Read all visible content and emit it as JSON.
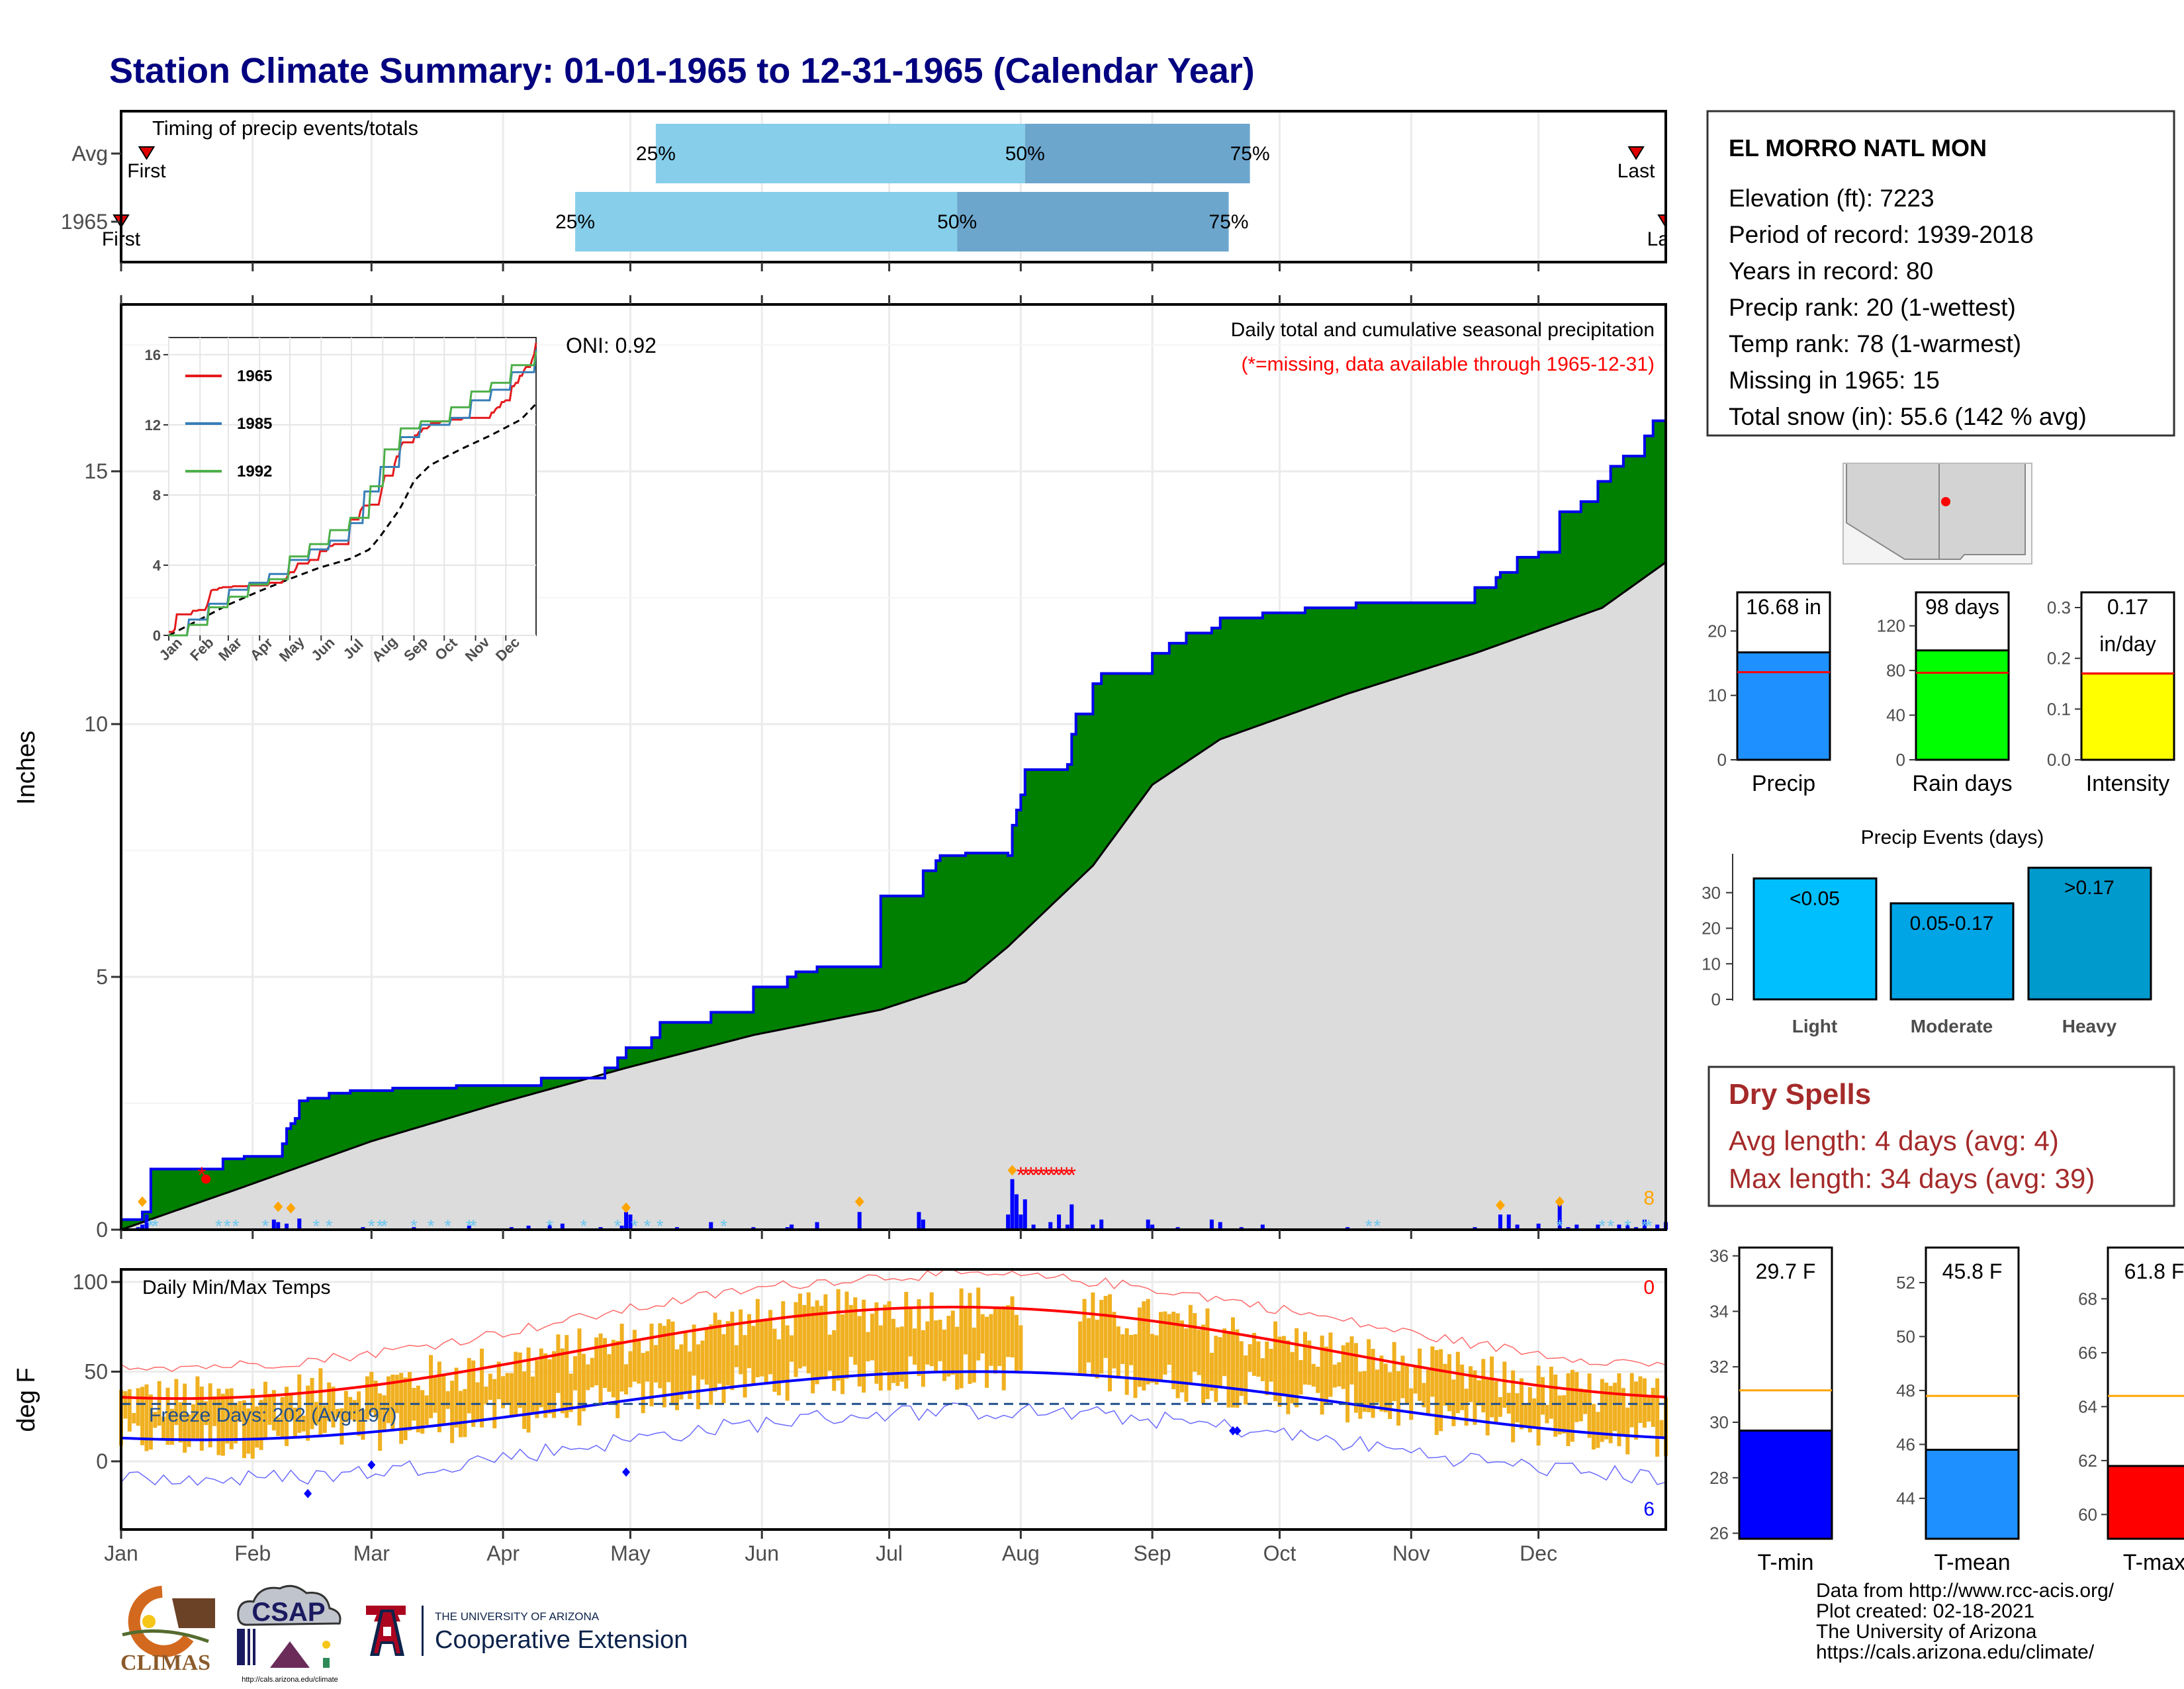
{
  "title": "Station Climate Summary: 01-01-1965 to 12-31-1965 (Calendar Year)",
  "colors": {
    "title": "#000080",
    "green_fill": "#008000",
    "blue_line": "#0000ee",
    "avg_gray": "#dcdcdc",
    "light_blue": "#87ceeb",
    "mid_blue": "#6ca6cd",
    "temp_orange": "#f0b020",
    "tmin_blue": "#0000ff",
    "tmean_blue": "#1e90ff",
    "tmax_red": "#ff0000",
    "dry_red": "#a52a2a",
    "orange_line": "#ffa500",
    "precip_bar": "#1e90ff",
    "rain_bar": "#00ff00",
    "intensity_bar": "#ffff00",
    "light_bar": "#00bfff",
    "moderate_bar": "#00a5e6",
    "heavy_bar": "#009acd"
  },
  "timing": {
    "label": "Timing of precip events/totals",
    "rows": [
      {
        "name": "Avg",
        "first_day": 7,
        "p25_day": 127,
        "p50_day": 214,
        "p75_day": 267,
        "last_day": 358,
        "first_label": "First",
        "last_label": "Last"
      },
      {
        "name": "1965",
        "first_day": 1,
        "p25_day": 108,
        "p50_day": 198,
        "p75_day": 262,
        "last_day": 365,
        "first_label": "First",
        "last_label": "Last"
      }
    ],
    "pct_labels": [
      "25%",
      "50%",
      "75%"
    ]
  },
  "main": {
    "ylabel": "Inches",
    "oni": "ONI: 0.92",
    "subtitle": "Daily total and cumulative seasonal precipitation",
    "missing_note": "(*=missing, data available through 1965-12-31)",
    "snow_count": "8",
    "yticks": [
      "0",
      "5",
      "10",
      "15"
    ],
    "months": [
      "Jan",
      "Feb",
      "Mar",
      "Apr",
      "May",
      "Jun",
      "Jul",
      "Aug",
      "Sep",
      "Oct",
      "Nov",
      "Dec"
    ]
  },
  "inset": {
    "legend": [
      "1965",
      "1985",
      "1992"
    ],
    "yticks": [
      "0",
      "4",
      "8",
      "12",
      "16"
    ],
    "months": [
      "Jan",
      "Feb",
      "Mar",
      "Apr",
      "May",
      "Jun",
      "Jul",
      "Aug",
      "Sep",
      "Oct",
      "Nov",
      "Dec"
    ]
  },
  "temps": {
    "ylabel": "deg F",
    "label": "Daily Min/Max Temps",
    "freeze": "Freeze Days: 202 (Avg:197)",
    "yticks": [
      "0",
      "50",
      "100"
    ],
    "count_red": "0",
    "count_blue": "6"
  },
  "station": {
    "name": "EL MORRO NATL MON",
    "lines": [
      "Elevation (ft): 7223",
      "Period of record: 1939-2018",
      "Years in record: 80",
      "Precip rank: 20 (1-wettest)",
      "Temp rank: 78 (1-warmest)",
      "Missing in 1965: 15",
      "Total snow (in): 55.6 (142 % avg)"
    ]
  },
  "summary_bars": [
    {
      "label": "Precip",
      "value": 16.68,
      "avg": 13.6,
      "text": [
        "16.68 in"
      ],
      "yticks": [
        "0",
        "10",
        "20"
      ],
      "ymax": 26,
      "tickvals": [
        0,
        10,
        20
      ]
    },
    {
      "label": "Rain days",
      "value": 98,
      "avg": 78,
      "text": [
        "98 days"
      ],
      "yticks": [
        "0",
        "40",
        "80",
        "120"
      ],
      "ymax": 150,
      "tickvals": [
        0,
        40,
        80,
        120
      ]
    },
    {
      "label": "Intensity",
      "value": 0.17,
      "avg": 0.17,
      "text": [
        "0.17",
        "in/day"
      ],
      "yticks": [
        "0.0",
        "0.1",
        "0.2",
        "0.3"
      ],
      "ymax": 0.33,
      "tickvals": [
        0,
        0.1,
        0.2,
        0.3
      ]
    }
  ],
  "events": {
    "title": "Precip Events (days)",
    "categories": [
      "Light",
      "Moderate",
      "Heavy"
    ],
    "labels": [
      "<0.05",
      "0.05-0.17",
      ">0.17"
    ],
    "values": [
      34,
      27,
      37
    ],
    "yticks": [
      "0",
      "10",
      "20",
      "30"
    ]
  },
  "dry_spells": {
    "title": "Dry Spells",
    "avg": "Avg length: 4 days (avg: 4)",
    "max": "Max length: 34 days (avg: 39)"
  },
  "temp_bars": [
    {
      "label": "T-min",
      "value": 29.7,
      "avg": 31.15,
      "text": "29.7 F",
      "ymin": 25.8,
      "ymax": 36.3,
      "yticks": [
        "26",
        "28",
        "30",
        "32",
        "34",
        "36"
      ]
    },
    {
      "label": "T-mean",
      "value": 45.8,
      "avg": 47.8,
      "text": "45.8 F",
      "ymin": 42.5,
      "ymax": 53.3,
      "yticks": [
        "44",
        "46",
        "48",
        "50",
        "52"
      ]
    },
    {
      "label": "T-max",
      "value": 61.8,
      "avg": 64.4,
      "text": "61.8 F",
      "ymin": 59.1,
      "ymax": 69.9,
      "yticks": [
        "60",
        "62",
        "64",
        "66",
        "68"
      ]
    }
  ],
  "logos": {
    "climas": "CLIMAS",
    "csap": "CSAP",
    "csap_url": "http://cals.arizona.edu/climate",
    "ua_small": "THE UNIVERSITY OF ARIZONA",
    "ua_big": "Cooperative Extension"
  },
  "footer": [
    "Data from http://www.rcc-acis.org/",
    "Plot created: 02-18-2021",
    "The University of Arizona",
    "https://cals.arizona.edu/climate/"
  ],
  "chart_data": {
    "type": "area",
    "title": "Daily total and cumulative seasonal precipitation",
    "xlabel": "",
    "ylabel": "Inches",
    "ylim": [
      0,
      18
    ],
    "x_range": [
      1,
      365
    ],
    "series": [
      {
        "name": "1965",
        "kind": "cumulative",
        "points": [
          [
            1,
            0.2
          ],
          [
            6,
            0.35
          ],
          [
            8,
            1.2
          ],
          [
            22,
            1.2
          ],
          [
            25,
            1.4
          ],
          [
            30,
            1.45
          ],
          [
            38,
            1.45
          ],
          [
            39,
            1.7
          ],
          [
            40,
            2.0
          ],
          [
            41,
            2.1
          ],
          [
            42,
            2.2
          ],
          [
            43,
            2.55
          ],
          [
            45,
            2.6
          ],
          [
            50,
            2.7
          ],
          [
            55,
            2.75
          ],
          [
            65,
            2.8
          ],
          [
            80,
            2.85
          ],
          [
            100,
            3.0
          ],
          [
            115,
            3.2
          ],
          [
            118,
            3.4
          ],
          [
            120,
            3.6
          ],
          [
            126,
            3.8
          ],
          [
            128,
            4.1
          ],
          [
            140,
            4.3
          ],
          [
            150,
            4.8
          ],
          [
            158,
            5.0
          ],
          [
            160,
            5.1
          ],
          [
            165,
            5.2
          ],
          [
            180,
            6.6
          ],
          [
            190,
            7.1
          ],
          [
            193,
            7.3
          ],
          [
            194,
            7.4
          ],
          [
            200,
            7.45
          ],
          [
            210,
            7.4
          ],
          [
            211,
            8.0
          ],
          [
            212,
            8.3
          ],
          [
            213,
            8.6
          ],
          [
            214,
            9.1
          ],
          [
            224,
            9.2
          ],
          [
            225,
            9.8
          ],
          [
            226,
            10.2
          ],
          [
            230,
            10.8
          ],
          [
            232,
            11.0
          ],
          [
            234,
            11.0
          ],
          [
            244,
            11.4
          ],
          [
            248,
            11.6
          ],
          [
            252,
            11.8
          ],
          [
            258,
            11.9
          ],
          [
            260,
            12.1
          ],
          [
            270,
            12.2
          ],
          [
            280,
            12.3
          ],
          [
            292,
            12.4
          ],
          [
            320,
            12.7
          ],
          [
            325,
            12.9
          ],
          [
            326,
            13.0
          ],
          [
            330,
            13.3
          ],
          [
            335,
            13.4
          ],
          [
            340,
            14.2
          ],
          [
            345,
            14.4
          ],
          [
            349,
            14.8
          ],
          [
            352,
            15.1
          ],
          [
            355,
            15.3
          ],
          [
            360,
            15.7
          ],
          [
            362,
            16.0
          ],
          [
            365,
            16.68
          ]
        ]
      },
      {
        "name": "Avg",
        "kind": "cumulative_avg",
        "points": [
          [
            1,
            0
          ],
          [
            30,
            0.85
          ],
          [
            60,
            1.75
          ],
          [
            90,
            2.5
          ],
          [
            120,
            3.2
          ],
          [
            150,
            3.85
          ],
          [
            180,
            4.35
          ],
          [
            200,
            4.9
          ],
          [
            210,
            5.6
          ],
          [
            230,
            7.2
          ],
          [
            244,
            8.8
          ],
          [
            260,
            9.7
          ],
          [
            290,
            10.6
          ],
          [
            320,
            11.4
          ],
          [
            350,
            12.3
          ],
          [
            365,
            13.2
          ]
        ]
      }
    ],
    "daily_precip": [
      [
        5,
        0.05
      ],
      [
        6,
        0.1
      ],
      [
        7,
        0.3
      ],
      [
        37,
        0.2
      ],
      [
        38,
        0.15
      ],
      [
        40,
        0.12
      ],
      [
        43,
        0.22
      ],
      [
        58,
        0.05
      ],
      [
        70,
        0.05
      ],
      [
        83,
        0.08
      ],
      [
        93,
        0.05
      ],
      [
        97,
        0.08
      ],
      [
        102,
        0.1
      ],
      [
        105,
        0.12
      ],
      [
        114,
        0.05
      ],
      [
        119,
        0.08
      ],
      [
        120,
        0.35
      ],
      [
        121,
        0.3
      ],
      [
        132,
        0.05
      ],
      [
        140,
        0.15
      ],
      [
        150,
        0.05
      ],
      [
        158,
        0.05
      ],
      [
        159,
        0.1
      ],
      [
        159,
        0.1
      ],
      [
        165,
        0.15
      ],
      [
        175,
        0.35
      ],
      [
        189,
        0.35
      ],
      [
        190,
        0.2
      ],
      [
        210,
        0.3
      ],
      [
        211,
        1.0
      ],
      [
        212,
        0.7
      ],
      [
        213,
        0.3
      ],
      [
        214,
        0.6
      ],
      [
        216,
        0.1
      ],
      [
        220,
        0.15
      ],
      [
        222,
        0.3
      ],
      [
        224,
        0.1
      ],
      [
        225,
        0.5
      ],
      [
        230,
        0.1
      ],
      [
        232,
        0.2
      ],
      [
        243,
        0.2
      ],
      [
        244,
        0.1
      ],
      [
        250,
        0.05
      ],
      [
        258,
        0.2
      ],
      [
        260,
        0.15
      ],
      [
        265,
        0.05
      ],
      [
        270,
        0.1
      ],
      [
        290,
        0.05
      ],
      [
        320,
        0.05
      ],
      [
        326,
        0.3
      ],
      [
        328,
        0.3
      ],
      [
        330,
        0.1
      ],
      [
        335,
        0.12
      ],
      [
        340,
        0.5
      ],
      [
        342,
        0.05
      ],
      [
        344,
        0.1
      ],
      [
        349,
        0.1
      ],
      [
        354,
        0.1
      ],
      [
        356,
        0.1
      ],
      [
        358,
        0.05
      ],
      [
        360,
        0.2
      ],
      [
        363,
        0.1
      ],
      [
        365,
        0.15
      ]
    ]
  }
}
